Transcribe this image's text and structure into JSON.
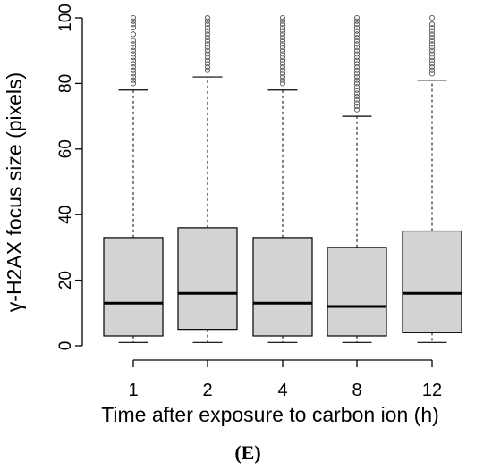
{
  "panel_label": "(E)",
  "chart_data": {
    "type": "box",
    "xlabel": "Time after exposure to carbon ion (h)",
    "ylabel": "γ-H2AX focus size (pixels)",
    "ylim": [
      0,
      100
    ],
    "yticks": [
      0,
      20,
      40,
      60,
      80,
      100
    ],
    "categories": [
      "1",
      "2",
      "4",
      "8",
      "12"
    ],
    "boxes": [
      {
        "category": "1",
        "whisker_low": 1,
        "q1": 3,
        "median": 13,
        "q3": 33,
        "whisker_high": 78,
        "outliers": [
          80,
          81,
          82,
          83,
          84,
          85,
          86,
          87,
          88,
          89,
          90,
          91,
          92,
          93,
          95,
          97,
          98,
          99,
          100
        ]
      },
      {
        "category": "2",
        "whisker_low": 1,
        "q1": 5,
        "median": 16,
        "q3": 36,
        "whisker_high": 82,
        "outliers": [
          84,
          85,
          86,
          87,
          88,
          89,
          90,
          91,
          92,
          93,
          94,
          95,
          96,
          97,
          98,
          99,
          100
        ]
      },
      {
        "category": "4",
        "whisker_low": 1,
        "q1": 3,
        "median": 13,
        "q3": 33,
        "whisker_high": 78,
        "outliers": [
          80,
          81,
          82,
          83,
          84,
          85,
          86,
          87,
          88,
          89,
          90,
          91,
          92,
          93,
          94,
          95,
          96,
          97,
          98,
          99,
          100
        ]
      },
      {
        "category": "8",
        "whisker_low": 1,
        "q1": 3,
        "median": 12,
        "q3": 30,
        "whisker_high": 70,
        "outliers": [
          72,
          73,
          74,
          75,
          76,
          77,
          78,
          79,
          80,
          81,
          82,
          83,
          84,
          85,
          86,
          87,
          88,
          89,
          90,
          91,
          92,
          93,
          94,
          95,
          96,
          97,
          98,
          99,
          100
        ]
      },
      {
        "category": "12",
        "whisker_low": 1,
        "q1": 4,
        "median": 16,
        "q3": 35,
        "whisker_high": 81,
        "outliers": [
          83,
          84,
          85,
          86,
          87,
          88,
          89,
          90,
          91,
          92,
          93,
          94,
          95,
          96,
          97,
          98,
          100
        ]
      }
    ],
    "box_fill": "#d3d3d3",
    "box_stroke": "#000000",
    "outlier_stroke": "#555555",
    "grid": false
  }
}
